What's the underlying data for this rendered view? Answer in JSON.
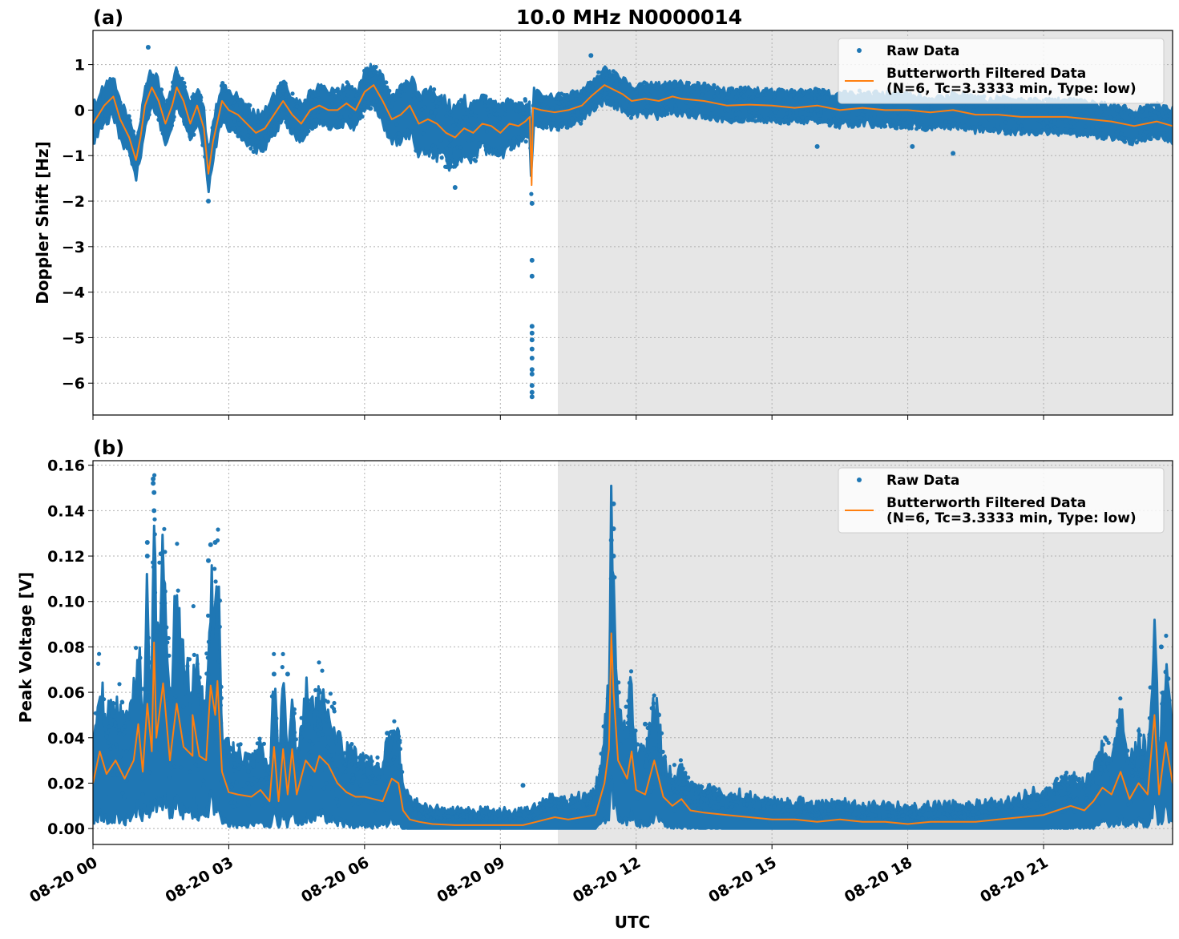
{
  "figure": {
    "title": "10.0 MHz N0000014",
    "xlabel": "UTC"
  },
  "chart_data": [
    {
      "type": "scatter",
      "panel_label": "(a)",
      "ylabel": "Doppler Shift [Hz]",
      "xlim_hours": [
        0,
        23.85
      ],
      "ylim": [
        -6.7,
        1.75
      ],
      "yticks": [
        1,
        0,
        -1,
        -2,
        -3,
        -4,
        -5,
        -6
      ],
      "ytick_labels": [
        "1",
        "0",
        "−1",
        "−2",
        "−3",
        "−4",
        "−5",
        "−6"
      ],
      "grid": true,
      "shaded_region_hours": [
        10.27,
        23.85
      ],
      "legend_position": "top-right",
      "series": [
        {
          "name": "Raw Data",
          "kind": "scatter",
          "color": "#1f77b4",
          "spread": [
            [
              0,
              0.35
            ],
            [
              3,
              0.35
            ],
            [
              6,
              0.35
            ],
            [
              7.5,
              0.6
            ],
            [
              9,
              0.45
            ],
            [
              10,
              0.3
            ],
            [
              11,
              0.3
            ],
            [
              12,
              0.3
            ],
            [
              15,
              0.28
            ],
            [
              18,
              0.3
            ],
            [
              21,
              0.3
            ],
            [
              23.85,
              0.3
            ]
          ],
          "outliers": [
            [
              9.7,
              -2.05
            ],
            [
              9.7,
              -3.3
            ],
            [
              9.7,
              -3.65
            ],
            [
              9.7,
              -4.75
            ],
            [
              9.7,
              -4.9
            ],
            [
              9.7,
              -5.05
            ],
            [
              9.7,
              -5.25
            ],
            [
              9.7,
              -5.45
            ],
            [
              9.7,
              -5.7
            ],
            [
              9.7,
              -5.8
            ],
            [
              9.7,
              -6.05
            ],
            [
              9.7,
              -6.2
            ],
            [
              9.7,
              -6.3
            ],
            [
              1.22,
              1.38
            ],
            [
              11.0,
              1.2
            ],
            [
              2.55,
              -2.0
            ],
            [
              8.0,
              -1.7
            ],
            [
              19.0,
              -0.95
            ],
            [
              18.1,
              -0.8
            ],
            [
              16.0,
              -0.8
            ]
          ]
        },
        {
          "name": "Butterworth Filtered Data\n(N=6, Tc=3.3333 min, Type: low)",
          "kind": "line",
          "color": "#ff7f0e",
          "points": [
            [
              0,
              -0.3
            ],
            [
              0.25,
              0.1
            ],
            [
              0.45,
              0.3
            ],
            [
              0.6,
              -0.2
            ],
            [
              0.8,
              -0.6
            ],
            [
              0.95,
              -1.1
            ],
            [
              1.05,
              -0.6
            ],
            [
              1.15,
              0.1
            ],
            [
              1.3,
              0.5
            ],
            [
              1.45,
              0.2
            ],
            [
              1.6,
              -0.3
            ],
            [
              1.75,
              0.1
            ],
            [
              1.85,
              0.5
            ],
            [
              2.0,
              0.2
            ],
            [
              2.15,
              -0.3
            ],
            [
              2.3,
              0.1
            ],
            [
              2.45,
              -0.4
            ],
            [
              2.55,
              -1.4
            ],
            [
              2.65,
              -0.7
            ],
            [
              2.85,
              0.2
            ],
            [
              3.0,
              0.0
            ],
            [
              3.2,
              -0.1
            ],
            [
              3.4,
              -0.3
            ],
            [
              3.6,
              -0.5
            ],
            [
              3.8,
              -0.4
            ],
            [
              4.0,
              -0.1
            ],
            [
              4.2,
              0.2
            ],
            [
              4.4,
              -0.1
            ],
            [
              4.6,
              -0.3
            ],
            [
              4.8,
              0.0
            ],
            [
              5.0,
              0.1
            ],
            [
              5.2,
              0.0
            ],
            [
              5.4,
              0.0
            ],
            [
              5.6,
              0.15
            ],
            [
              5.8,
              0.0
            ],
            [
              6.0,
              0.4
            ],
            [
              6.2,
              0.55
            ],
            [
              6.4,
              0.2
            ],
            [
              6.6,
              -0.2
            ],
            [
              6.8,
              -0.1
            ],
            [
              7.0,
              0.1
            ],
            [
              7.2,
              -0.3
            ],
            [
              7.4,
              -0.2
            ],
            [
              7.6,
              -0.3
            ],
            [
              7.8,
              -0.5
            ],
            [
              8.0,
              -0.6
            ],
            [
              8.2,
              -0.4
            ],
            [
              8.4,
              -0.5
            ],
            [
              8.6,
              -0.3
            ],
            [
              8.8,
              -0.35
            ],
            [
              9.0,
              -0.5
            ],
            [
              9.2,
              -0.3
            ],
            [
              9.4,
              -0.35
            ],
            [
              9.55,
              -0.25
            ],
            [
              9.65,
              -0.15
            ],
            [
              9.69,
              -1.65
            ],
            [
              9.72,
              0.05
            ],
            [
              9.9,
              0.0
            ],
            [
              10.2,
              -0.05
            ],
            [
              10.5,
              0.0
            ],
            [
              10.8,
              0.1
            ],
            [
              11.0,
              0.3
            ],
            [
              11.3,
              0.55
            ],
            [
              11.5,
              0.45
            ],
            [
              11.7,
              0.35
            ],
            [
              11.9,
              0.2
            ],
            [
              12.2,
              0.25
            ],
            [
              12.5,
              0.2
            ],
            [
              12.8,
              0.3
            ],
            [
              13.0,
              0.25
            ],
            [
              13.5,
              0.2
            ],
            [
              14.0,
              0.1
            ],
            [
              14.5,
              0.12
            ],
            [
              15.0,
              0.1
            ],
            [
              15.5,
              0.05
            ],
            [
              16.0,
              0.1
            ],
            [
              16.5,
              0.0
            ],
            [
              17.0,
              0.05
            ],
            [
              17.5,
              0.0
            ],
            [
              18.0,
              0.0
            ],
            [
              18.5,
              -0.05
            ],
            [
              19.0,
              0.0
            ],
            [
              19.5,
              -0.1
            ],
            [
              20.0,
              -0.1
            ],
            [
              20.5,
              -0.15
            ],
            [
              21.0,
              -0.15
            ],
            [
              21.5,
              -0.15
            ],
            [
              22.0,
              -0.2
            ],
            [
              22.5,
              -0.25
            ],
            [
              23.0,
              -0.35
            ],
            [
              23.5,
              -0.25
            ],
            [
              23.85,
              -0.35
            ]
          ]
        }
      ]
    },
    {
      "type": "scatter",
      "panel_label": "(b)",
      "ylabel": "Peak Voltage [V]",
      "xlim_hours": [
        0,
        23.85
      ],
      "xticks_hours": [
        0,
        3,
        6,
        9,
        12,
        15,
        18,
        21
      ],
      "xtick_labels": [
        "08-20 00",
        "08-20 03",
        "08-20 06",
        "08-20 09",
        "08-20 12",
        "08-20 15",
        "08-20 18",
        "08-20 21"
      ],
      "ylim": [
        -0.007,
        0.162
      ],
      "yticks": [
        0.16,
        0.14,
        0.12,
        0.1,
        0.08,
        0.06,
        0.04,
        0.02,
        0.0
      ],
      "ytick_labels": [
        "0.16",
        "0.14",
        "0.12",
        "0.10",
        "0.08",
        "0.06",
        "0.04",
        "0.02",
        "0.00"
      ],
      "grid": true,
      "shaded_region_hours": [
        10.27,
        23.85
      ],
      "legend_position": "top-right",
      "series": [
        {
          "name": "Raw Data",
          "kind": "scatter",
          "color": "#1f77b4",
          "outliers": [
            [
              1.33,
              0.154
            ],
            [
              1.33,
              0.152
            ],
            [
              1.35,
              0.148
            ],
            [
              1.35,
              0.14
            ],
            [
              1.2,
              0.126
            ],
            [
              1.5,
              0.121
            ],
            [
              1.2,
              0.12
            ],
            [
              2.6,
              0.125
            ],
            [
              2.7,
              0.126
            ],
            [
              2.55,
              0.118
            ],
            [
              11.5,
              0.143
            ],
            [
              11.5,
              0.132
            ],
            [
              11.45,
              0.127
            ],
            [
              11.5,
              0.12
            ],
            [
              11.45,
              0.11
            ],
            [
              23.6,
              0.08
            ],
            [
              23.7,
              0.069
            ],
            [
              23.75,
              0.066
            ],
            [
              12.5,
              0.05
            ],
            [
              12.2,
              0.046
            ],
            [
              4.0,
              0.068
            ],
            [
              4.3,
              0.068
            ],
            [
              5.0,
              0.06
            ],
            [
              6.5,
              0.042
            ],
            [
              9.5,
              0.019
            ]
          ]
        },
        {
          "name": "Butterworth Filtered Data\n(N=6, Tc=3.3333 min, Type: low)",
          "kind": "line",
          "color": "#ff7f0e",
          "points": [
            [
              0,
              0.02
            ],
            [
              0.15,
              0.034
            ],
            [
              0.3,
              0.024
            ],
            [
              0.5,
              0.03
            ],
            [
              0.7,
              0.022
            ],
            [
              0.9,
              0.03
            ],
            [
              1.0,
              0.046
            ],
            [
              1.1,
              0.025
            ],
            [
              1.2,
              0.055
            ],
            [
              1.3,
              0.034
            ],
            [
              1.35,
              0.082
            ],
            [
              1.4,
              0.04
            ],
            [
              1.55,
              0.064
            ],
            [
              1.7,
              0.03
            ],
            [
              1.85,
              0.055
            ],
            [
              2.0,
              0.036
            ],
            [
              2.2,
              0.032
            ],
            [
              2.2,
              0.05
            ],
            [
              2.35,
              0.032
            ],
            [
              2.5,
              0.03
            ],
            [
              2.6,
              0.063
            ],
            [
              2.7,
              0.05
            ],
            [
              2.75,
              0.065
            ],
            [
              2.85,
              0.025
            ],
            [
              3.0,
              0.016
            ],
            [
              3.2,
              0.015
            ],
            [
              3.5,
              0.014
            ],
            [
              3.7,
              0.017
            ],
            [
              3.9,
              0.012
            ],
            [
              4.0,
              0.036
            ],
            [
              4.1,
              0.012
            ],
            [
              4.2,
              0.035
            ],
            [
              4.3,
              0.015
            ],
            [
              4.4,
              0.035
            ],
            [
              4.5,
              0.015
            ],
            [
              4.7,
              0.03
            ],
            [
              4.9,
              0.025
            ],
            [
              5.0,
              0.032
            ],
            [
              5.2,
              0.028
            ],
            [
              5.4,
              0.02
            ],
            [
              5.6,
              0.016
            ],
            [
              5.8,
              0.014
            ],
            [
              6.0,
              0.014
            ],
            [
              6.2,
              0.013
            ],
            [
              6.4,
              0.012
            ],
            [
              6.6,
              0.022
            ],
            [
              6.75,
              0.02
            ],
            [
              6.85,
              0.008
            ],
            [
              7.0,
              0.004
            ],
            [
              7.2,
              0.003
            ],
            [
              7.5,
              0.002
            ],
            [
              8.0,
              0.0015
            ],
            [
              8.5,
              0.0015
            ],
            [
              9.0,
              0.0015
            ],
            [
              9.5,
              0.0015
            ],
            [
              9.8,
              0.003
            ],
            [
              10.0,
              0.004
            ],
            [
              10.2,
              0.005
            ],
            [
              10.5,
              0.004
            ],
            [
              10.8,
              0.005
            ],
            [
              11.1,
              0.006
            ],
            [
              11.3,
              0.02
            ],
            [
              11.4,
              0.035
            ],
            [
              11.45,
              0.086
            ],
            [
              11.5,
              0.06
            ],
            [
              11.6,
              0.03
            ],
            [
              11.8,
              0.022
            ],
            [
              11.9,
              0.034
            ],
            [
              12.0,
              0.017
            ],
            [
              12.2,
              0.015
            ],
            [
              12.4,
              0.03
            ],
            [
              12.6,
              0.014
            ],
            [
              12.8,
              0.01
            ],
            [
              13.0,
              0.013
            ],
            [
              13.2,
              0.008
            ],
            [
              13.5,
              0.007
            ],
            [
              14.0,
              0.006
            ],
            [
              14.5,
              0.005
            ],
            [
              15.0,
              0.004
            ],
            [
              15.5,
              0.004
            ],
            [
              16.0,
              0.003
            ],
            [
              16.5,
              0.004
            ],
            [
              17.0,
              0.003
            ],
            [
              17.5,
              0.003
            ],
            [
              18.0,
              0.002
            ],
            [
              18.5,
              0.003
            ],
            [
              19.0,
              0.003
            ],
            [
              19.5,
              0.003
            ],
            [
              20.0,
              0.004
            ],
            [
              20.5,
              0.005
            ],
            [
              21.0,
              0.006
            ],
            [
              21.3,
              0.008
            ],
            [
              21.6,
              0.01
            ],
            [
              21.9,
              0.008
            ],
            [
              22.1,
              0.012
            ],
            [
              22.3,
              0.018
            ],
            [
              22.5,
              0.015
            ],
            [
              22.7,
              0.025
            ],
            [
              22.9,
              0.013
            ],
            [
              23.1,
              0.02
            ],
            [
              23.3,
              0.015
            ],
            [
              23.45,
              0.05
            ],
            [
              23.55,
              0.015
            ],
            [
              23.7,
              0.038
            ],
            [
              23.85,
              0.02
            ]
          ]
        }
      ]
    }
  ]
}
